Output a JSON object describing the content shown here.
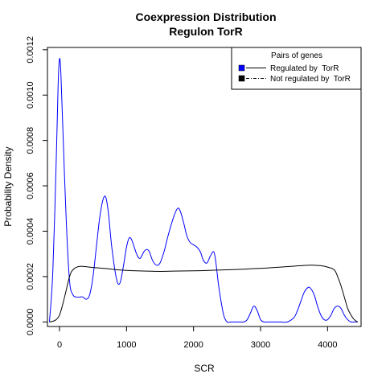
{
  "chart_data": {
    "type": "line",
    "title": "Coexpression Distribution",
    "subtitle": "Regulon TorR",
    "xlabel": "SCR",
    "ylabel": "Probability Density",
    "xlim": [
      -180,
      4500
    ],
    "ylim": [
      -2e-05,
      0.00121
    ],
    "x_ticks": [
      0,
      1000,
      2000,
      3000,
      4000
    ],
    "y_ticks": [
      0.0,
      0.0002,
      0.0004,
      0.0006,
      0.0008,
      0.001,
      0.0012
    ],
    "y_tick_labels": [
      "0.0000",
      "0.0002",
      "0.0004",
      "0.0006",
      "0.0008",
      "0.0010",
      "0.0012"
    ],
    "legend": {
      "title": "Pairs of genes",
      "position": "top-right"
    },
    "series": [
      {
        "name": "Regulated by  TorR",
        "color": "#0000ff",
        "line_style": "solid",
        "x": [
          -150,
          -100,
          -50,
          -20,
          0,
          20,
          50,
          100,
          150,
          200,
          250,
          300,
          350,
          400,
          450,
          500,
          550,
          600,
          650,
          690,
          730,
          780,
          850,
          900,
          950,
          1000,
          1040,
          1080,
          1150,
          1200,
          1260,
          1300,
          1340,
          1390,
          1450,
          1500,
          1560,
          1620,
          1700,
          1760,
          1800,
          1850,
          1900,
          1950,
          2000,
          2050,
          2100,
          2150,
          2200,
          2250,
          2300,
          2330,
          2370,
          2400,
          2450,
          2500,
          2550,
          2600,
          2650,
          2700,
          2750,
          2800,
          2850,
          2900,
          2950,
          3000,
          3050,
          3100,
          3200,
          3300,
          3400,
          3500,
          3550,
          3600,
          3650,
          3700,
          3740,
          3800,
          3850,
          3900,
          3950,
          4000,
          4050,
          4100,
          4150,
          4200,
          4250,
          4300,
          4350,
          4400,
          4450
        ],
        "y": [
          0.0,
          0.00022,
          0.0007,
          0.00105,
          0.00116,
          0.0011,
          0.00085,
          0.00045,
          0.00018,
          0.00012,
          0.00011,
          0.00011,
          0.00011,
          0.0001,
          0.00012,
          0.0002,
          0.00033,
          0.00046,
          0.00054,
          0.00055,
          0.00048,
          0.00033,
          0.00019,
          0.00017,
          0.00024,
          0.00033,
          0.00037,
          0.00036,
          0.0003,
          0.00028,
          0.00031,
          0.00032,
          0.00031,
          0.00027,
          0.00025,
          0.00026,
          0.00031,
          0.00038,
          0.00046,
          0.0005,
          0.00049,
          0.00044,
          0.00038,
          0.00035,
          0.00034,
          0.00033,
          0.00031,
          0.00027,
          0.00026,
          0.00029,
          0.00031,
          0.00027,
          0.00017,
          0.00011,
          3e-05,
          0.0,
          0.0,
          0.0,
          0.0,
          0.0,
          0.0,
          1e-05,
          4e-05,
          7e-05,
          5e-05,
          1e-05,
          0.0,
          0.0,
          0.0,
          0.0,
          0.0,
          2e-05,
          5e-05,
          9e-05,
          0.00013,
          0.00015,
          0.00015,
          0.00012,
          7e-05,
          3e-05,
          1e-05,
          1e-05,
          3e-05,
          6e-05,
          7e-05,
          6e-05,
          3e-05,
          1e-05,
          0.0,
          0.0,
          0.0
        ]
      },
      {
        "name": "Not regulated by  TorR",
        "color": "#000000",
        "line_style": "solid",
        "x": [
          -150,
          -100,
          -50,
          0,
          50,
          100,
          150,
          200,
          300,
          500,
          700,
          900,
          1100,
          1300,
          1500,
          1700,
          1900,
          2100,
          2300,
          2500,
          2700,
          2900,
          3100,
          3300,
          3500,
          3700,
          3800,
          3900,
          4000,
          4100,
          4150,
          4200,
          4250,
          4300,
          4350,
          4400,
          4450
        ],
        "y": [
          0.0,
          3e-06,
          1e-05,
          3e-05,
          8e-05,
          0.00014,
          0.0002,
          0.00023,
          0.000245,
          0.00024,
          0.000235,
          0.000229,
          0.000226,
          0.000224,
          0.000223,
          0.000224,
          0.000225,
          0.000226,
          0.000228,
          0.00023,
          0.000232,
          0.000235,
          0.000238,
          0.000242,
          0.000246,
          0.00025,
          0.00025,
          0.000248,
          0.000242,
          0.00023,
          0.0002,
          0.00016,
          0.00011,
          6e-05,
          3e-05,
          1e-05,
          0.0
        ]
      }
    ]
  }
}
